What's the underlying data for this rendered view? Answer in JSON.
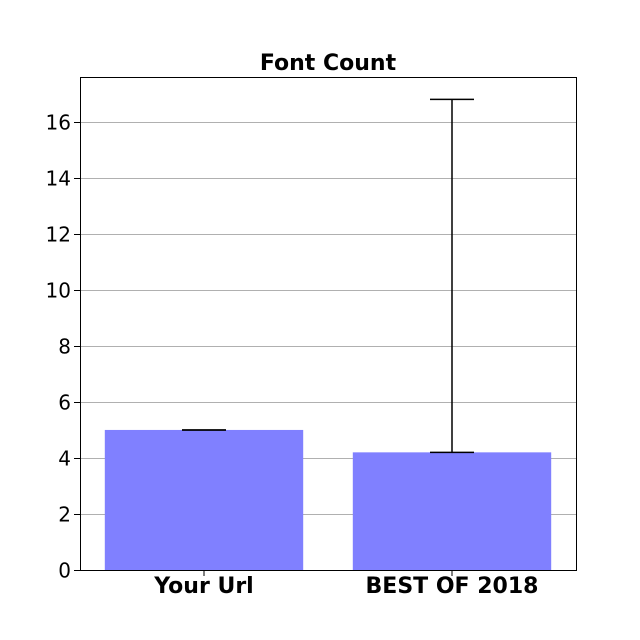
{
  "chart_data": {
    "type": "bar",
    "title": "Font Count",
    "xlabel": "",
    "ylabel": "",
    "categories": [
      "Your Url",
      "BEST OF 2018"
    ],
    "values": [
      5.0,
      4.2
    ],
    "error_low": [
      5.0,
      4.2
    ],
    "error_high": [
      5.0,
      16.8
    ],
    "ylim": [
      0,
      17.6
    ],
    "yticks": [
      0,
      2,
      4,
      6,
      8,
      10,
      12,
      14,
      16
    ],
    "ytick_labels": [
      "0",
      "2",
      "4",
      "6",
      "8",
      "10",
      "12",
      "14",
      "16"
    ],
    "grid": true,
    "bar_color": "#8080ff",
    "error_color": "#000000"
  }
}
